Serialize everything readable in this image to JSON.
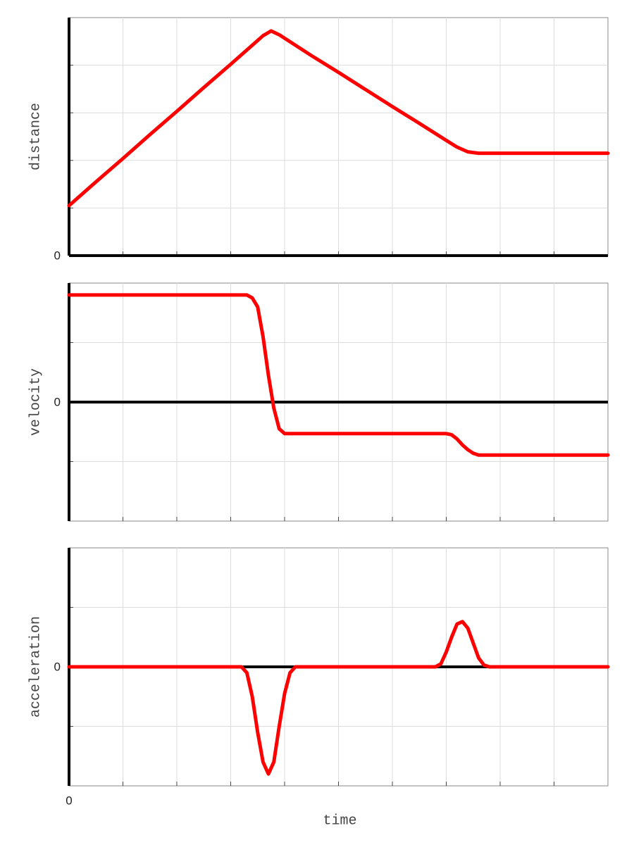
{
  "chart_data": [
    {
      "type": "line",
      "ylabel": "distance",
      "xlim": [
        0,
        10
      ],
      "xgrid": [
        1,
        2,
        3,
        4,
        5,
        6,
        7,
        8,
        9
      ],
      "ylim": [
        0,
        5
      ],
      "yticks": [
        0
      ],
      "ygrid": [
        1,
        2,
        3,
        4
      ],
      "x": [
        0,
        0.5,
        1,
        1.5,
        2,
        2.5,
        3,
        3.4,
        3.6,
        3.75,
        3.9,
        4.2,
        4.5,
        5,
        5.5,
        6,
        6.5,
        7,
        7.2,
        7.4,
        7.6,
        8,
        9,
        10
      ],
      "series": [
        {
          "color": "#ff0000",
          "values": [
            1.05,
            1.55,
            2.04,
            2.54,
            3.03,
            3.53,
            4.02,
            4.42,
            4.62,
            4.72,
            4.64,
            4.42,
            4.2,
            3.85,
            3.49,
            3.13,
            2.78,
            2.42,
            2.28,
            2.18,
            2.15,
            2.15,
            2.15,
            2.15
          ]
        }
      ]
    },
    {
      "type": "line",
      "ylabel": "velocity",
      "xlim": [
        0,
        10
      ],
      "xgrid": [
        1,
        2,
        3,
        4,
        5,
        6,
        7,
        8,
        9
      ],
      "ylim": [
        -2,
        2
      ],
      "yticks": [
        0
      ],
      "ygrid": [
        -1,
        1
      ],
      "x": [
        0,
        3.3,
        3.4,
        3.5,
        3.6,
        3.7,
        3.8,
        3.9,
        4.0,
        4.1,
        7.0,
        7.1,
        7.2,
        7.3,
        7.4,
        7.5,
        7.6,
        10
      ],
      "series": [
        {
          "color": "#ff0000",
          "values": [
            1.8,
            1.8,
            1.75,
            1.6,
            1.1,
            0.45,
            -0.1,
            -0.45,
            -0.53,
            -0.53,
            -0.53,
            -0.55,
            -0.62,
            -0.72,
            -0.8,
            -0.86,
            -0.89,
            -0.89
          ]
        }
      ]
    },
    {
      "type": "line",
      "ylabel": "acceleration",
      "xlabel": "time",
      "xlim": [
        0,
        10
      ],
      "xticks": [
        0
      ],
      "xgrid": [
        1,
        2,
        3,
        4,
        5,
        6,
        7,
        8,
        9
      ],
      "ylim": [
        -2,
        2
      ],
      "yticks": [
        0
      ],
      "ygrid": [
        -1,
        1
      ],
      "x": [
        0,
        3.2,
        3.3,
        3.4,
        3.5,
        3.6,
        3.7,
        3.8,
        3.9,
        4.0,
        4.1,
        4.2,
        6.8,
        6.9,
        7.0,
        7.1,
        7.2,
        7.3,
        7.4,
        7.5,
        7.6,
        7.7,
        7.8,
        10
      ],
      "series": [
        {
          "color": "#ff0000",
          "values": [
            0,
            0,
            -0.1,
            -0.5,
            -1.1,
            -1.6,
            -1.8,
            -1.6,
            -1.0,
            -0.45,
            -0.1,
            0,
            0,
            0.05,
            0.25,
            0.5,
            0.72,
            0.76,
            0.65,
            0.4,
            0.15,
            0.03,
            0,
            0
          ]
        }
      ]
    }
  ]
}
